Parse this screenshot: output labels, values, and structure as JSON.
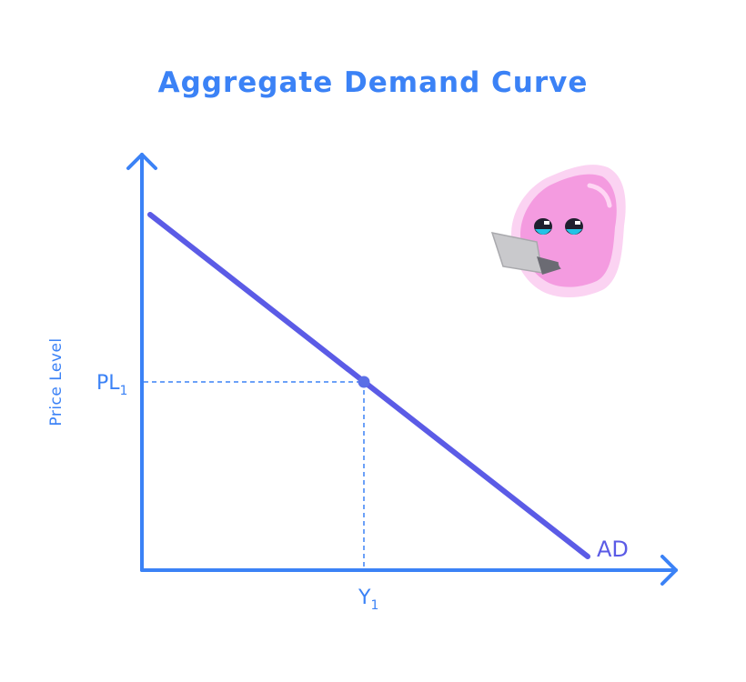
{
  "title": "Aggregate Demand Curve",
  "y_axis_label": "Price Level",
  "x_axis_label": "",
  "price_marker": {
    "main": "PL",
    "sub": "1"
  },
  "output_marker": {
    "main": "Y",
    "sub": "1"
  },
  "curve": {
    "label": "AD",
    "type": "downward-sloping line"
  },
  "mascot": {
    "description": "pink blob character holding a laptop",
    "icon": "pink-blob-mascot-icon"
  },
  "colors": {
    "title": "#3b82f6",
    "axis": "#3b82f6",
    "labels": "#3b82f6",
    "curve": "#5b5be6",
    "guide": "#3b82f6",
    "point": "#5b6fe6",
    "mascot_body": "#f49be0",
    "mascot_glow": "#fbd3f2",
    "laptop": "#c9c9cc"
  }
}
